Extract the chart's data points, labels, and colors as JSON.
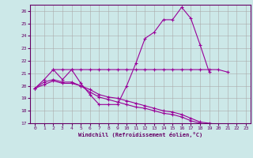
{
  "xlabel": "Windchill (Refroidissement éolien,°C)",
  "background_color": "#cce8e8",
  "line_color": "#990099",
  "xlim": [
    -0.5,
    23.5
  ],
  "ylim": [
    17,
    26.5
  ],
  "yticks": [
    17,
    18,
    19,
    20,
    21,
    22,
    23,
    24,
    25,
    26
  ],
  "xticks": [
    0,
    1,
    2,
    3,
    4,
    5,
    6,
    7,
    8,
    9,
    10,
    11,
    12,
    13,
    14,
    15,
    16,
    17,
    18,
    19,
    20,
    21,
    22,
    23
  ],
  "series1_x": [
    0,
    1,
    2,
    3,
    4,
    5,
    6,
    7,
    8,
    9,
    10,
    11,
    12,
    13,
    14,
    15,
    16,
    17,
    18,
    19
  ],
  "series1_y": [
    19.8,
    20.5,
    21.3,
    20.5,
    21.3,
    20.2,
    19.3,
    18.5,
    18.5,
    18.5,
    20.0,
    21.8,
    23.8,
    24.3,
    25.3,
    25.3,
    26.3,
    25.4,
    23.3,
    21.1
  ],
  "series2_x": [
    2,
    3,
    4,
    5,
    6,
    7,
    8,
    9,
    10,
    11,
    12,
    13,
    14,
    15,
    16,
    17,
    18,
    19,
    20,
    21
  ],
  "series2_y": [
    21.3,
    21.3,
    21.3,
    21.3,
    21.3,
    21.3,
    21.3,
    21.3,
    21.3,
    21.3,
    21.3,
    21.3,
    21.3,
    21.3,
    21.3,
    21.3,
    21.3,
    21.3,
    21.3,
    21.1
  ],
  "series3_x": [
    0,
    1,
    2,
    3,
    4,
    5,
    6,
    7,
    8,
    9,
    10,
    11,
    12,
    13,
    14,
    15,
    16,
    17,
    18,
    19,
    20,
    21,
    22,
    23
  ],
  "series3_y": [
    19.8,
    20.3,
    20.5,
    20.3,
    20.3,
    20.0,
    19.5,
    19.1,
    18.9,
    18.7,
    18.5,
    18.3,
    18.2,
    18.0,
    17.8,
    17.7,
    17.5,
    17.2,
    17.0,
    16.8,
    16.8,
    16.8,
    16.8,
    16.9
  ],
  "series4_x": [
    0,
    1,
    2,
    3,
    4,
    5,
    6,
    7,
    8,
    9,
    10,
    11,
    12,
    13,
    14,
    15,
    16,
    17,
    18,
    19,
    20,
    21,
    22,
    23
  ],
  "series4_y": [
    19.8,
    20.1,
    20.4,
    20.2,
    20.2,
    20.0,
    19.7,
    19.3,
    19.1,
    19.0,
    18.8,
    18.6,
    18.4,
    18.2,
    18.0,
    17.9,
    17.7,
    17.4,
    17.1,
    17.0,
    16.9,
    16.8,
    16.8,
    16.9
  ]
}
